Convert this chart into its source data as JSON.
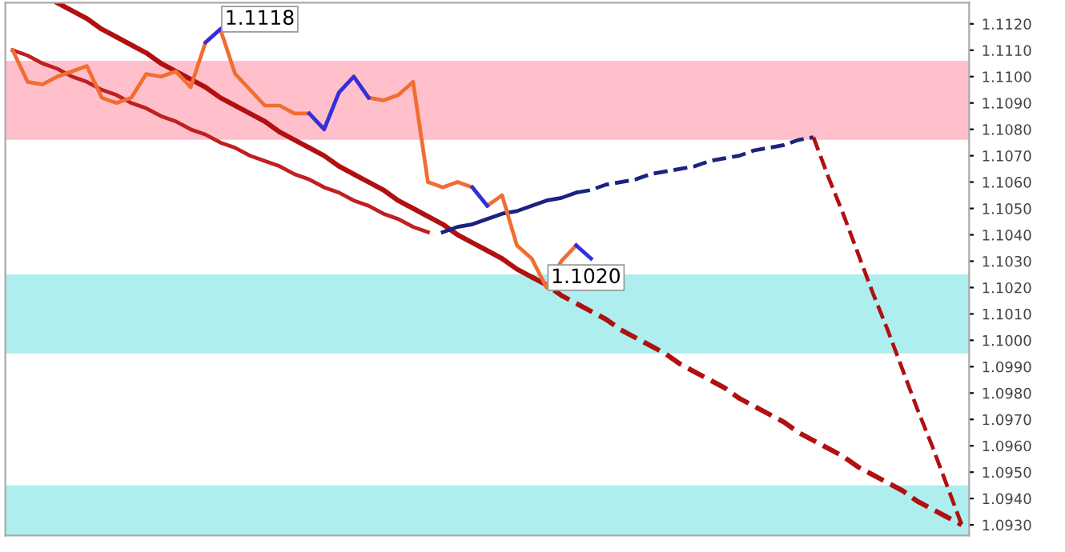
{
  "chart_data": {
    "type": "line",
    "ylim": [
      1.0926,
      1.1128
    ],
    "tick_labels": "y",
    "grid": false,
    "legend": false,
    "yticks": [
      {
        "value": 1.093,
        "label": "1.0930"
      },
      {
        "value": 1.094,
        "label": "1.0940"
      },
      {
        "value": 1.095,
        "label": "1.0950"
      },
      {
        "value": 1.096,
        "label": "1.0960"
      },
      {
        "value": 1.097,
        "label": "1.0970"
      },
      {
        "value": 1.098,
        "label": "1.0980"
      },
      {
        "value": 1.099,
        "label": "1.0990"
      },
      {
        "value": 1.1,
        "label": "1.1000"
      },
      {
        "value": 1.101,
        "label": "1.1010"
      },
      {
        "value": 1.102,
        "label": "1.1020"
      },
      {
        "value": 1.103,
        "label": "1.1030"
      },
      {
        "value": 1.104,
        "label": "1.1040"
      },
      {
        "value": 1.105,
        "label": "1.1050"
      },
      {
        "value": 1.106,
        "label": "1.1060"
      },
      {
        "value": 1.107,
        "label": "1.1070"
      },
      {
        "value": 1.108,
        "label": "1.1080"
      },
      {
        "value": 1.109,
        "label": "1.1090"
      },
      {
        "value": 1.11,
        "label": "1.1100"
      },
      {
        "value": 1.111,
        "label": "1.1110"
      },
      {
        "value": 1.112,
        "label": "1.1120"
      }
    ],
    "categories": [
      null,
      null,
      null,
      null,
      null,
      null,
      null,
      null,
      null,
      null,
      null,
      null,
      null,
      null,
      null,
      null,
      null,
      null,
      null,
      null,
      null,
      null,
      null,
      null,
      null,
      null,
      null,
      null,
      null,
      null,
      null,
      null,
      null,
      null,
      null,
      null,
      null,
      null,
      null,
      null,
      null,
      null,
      null,
      null,
      null,
      null,
      null,
      null,
      null,
      null,
      null,
      null,
      null,
      null,
      null,
      null,
      null,
      null,
      null,
      null,
      null,
      null,
      null,
      null,
      null
    ],
    "bands": [
      {
        "axis": "y",
        "from": 1.1076,
        "to": 1.1106,
        "color": "#ffc0cb"
      },
      {
        "axis": "y",
        "from": 1.0995,
        "to": 1.1025,
        "color": "#afeeee"
      },
      {
        "axis": "y",
        "from": 1.0926,
        "to": 1.0945,
        "color": "#afeeee"
      }
    ],
    "series": [
      {
        "color": "#b01010",
        "line_style": "solid",
        "values": [
          null,
          null,
          null,
          1.1128,
          1.1125,
          1.1122,
          1.1118,
          1.1115,
          1.1112,
          1.1109,
          1.1105,
          1.1102,
          1.1099,
          1.1096,
          1.1092,
          1.1089,
          1.1086,
          1.1083,
          1.1079,
          1.1076,
          1.1073,
          1.107,
          1.1066,
          1.1063,
          1.106,
          1.1057,
          1.1053,
          1.105,
          1.1047,
          1.1044,
          1.104,
          1.1037,
          1.1034,
          1.1031,
          1.1027,
          1.1024,
          null,
          null,
          null,
          null,
          null,
          null,
          null,
          null,
          null,
          null,
          null,
          null,
          null,
          null,
          null,
          null,
          null,
          null,
          null,
          null,
          null,
          null,
          null,
          null,
          null,
          null,
          null,
          null,
          null
        ]
      },
      {
        "color": "#b01010",
        "line_style": "dashed",
        "values": [
          null,
          null,
          null,
          null,
          null,
          null,
          null,
          null,
          null,
          null,
          null,
          null,
          null,
          null,
          null,
          null,
          null,
          null,
          null,
          null,
          null,
          null,
          null,
          null,
          null,
          null,
          null,
          null,
          null,
          null,
          null,
          null,
          null,
          null,
          null,
          1.1024,
          1.1021,
          1.1017,
          1.1014,
          1.1011,
          1.1008,
          1.1004,
          1.1001,
          1.0998,
          1.0995,
          1.0991,
          1.0988,
          1.0985,
          1.0982,
          1.0978,
          1.0975,
          1.0972,
          1.0969,
          1.0965,
          1.0962,
          1.0959,
          1.0956,
          1.0952,
          1.0949,
          1.0946,
          1.0943,
          1.0939,
          1.0936,
          1.0933,
          1.093
        ]
      },
      {
        "color": "#c02020",
        "line_style": "solid",
        "values": [
          1.111,
          1.1108,
          1.1105,
          1.1103,
          1.11,
          1.1098,
          1.1095,
          1.1093,
          1.109,
          1.1088,
          1.1085,
          1.1083,
          1.108,
          1.1078,
          1.1075,
          1.1073,
          1.107,
          1.1068,
          1.1066,
          1.1063,
          1.1061,
          1.1058,
          1.1056,
          1.1053,
          1.1051,
          1.1048,
          1.1046,
          1.1043,
          1.1041,
          null,
          null,
          null,
          null,
          null,
          null,
          null,
          null,
          null,
          null,
          null,
          null,
          null,
          null,
          null,
          null,
          null,
          null,
          null,
          null,
          null,
          null,
          null,
          null,
          null,
          null,
          null,
          null,
          null,
          null,
          null,
          null,
          null,
          null,
          null,
          null
        ]
      },
      {
        "color": "#1a237e",
        "line_style": "solid",
        "values": [
          null,
          null,
          null,
          null,
          null,
          null,
          null,
          null,
          null,
          null,
          null,
          null,
          null,
          null,
          null,
          null,
          null,
          null,
          null,
          null,
          null,
          null,
          null,
          null,
          null,
          null,
          null,
          null,
          null,
          1.1041,
          1.1043,
          1.1044,
          1.1046,
          1.1048,
          1.1049,
          1.1051,
          1.1053,
          1.1054,
          1.1056,
          null,
          null,
          null,
          null,
          null,
          null,
          null,
          null,
          null,
          null,
          null,
          null,
          null,
          null,
          null,
          null,
          null,
          null,
          null,
          null,
          null,
          null,
          null,
          null,
          null,
          null
        ]
      },
      {
        "color": "#1a237e",
        "line_style": "dashed",
        "values": [
          null,
          null,
          null,
          null,
          null,
          null,
          null,
          null,
          null,
          null,
          null,
          null,
          null,
          null,
          null,
          null,
          null,
          null,
          null,
          null,
          null,
          null,
          null,
          null,
          null,
          null,
          null,
          null,
          null,
          null,
          null,
          null,
          null,
          null,
          null,
          null,
          null,
          null,
          1.1056,
          1.1057,
          1.1059,
          1.106,
          1.1061,
          1.1063,
          1.1064,
          1.1065,
          1.1066,
          1.1068,
          1.1069,
          1.107,
          1.1072,
          1.1073,
          1.1074,
          1.1076,
          1.1077,
          null,
          null,
          null,
          null,
          null,
          null,
          null,
          null,
          null,
          null
        ]
      },
      {
        "color": "#b01010",
        "line_style": "dashed",
        "values": [
          null,
          null,
          null,
          null,
          null,
          null,
          null,
          null,
          null,
          null,
          null,
          null,
          null,
          null,
          null,
          null,
          null,
          null,
          null,
          null,
          null,
          null,
          null,
          null,
          null,
          null,
          null,
          null,
          null,
          null,
          null,
          null,
          null,
          null,
          null,
          null,
          null,
          null,
          null,
          null,
          null,
          null,
          null,
          null,
          null,
          null,
          null,
          null,
          null,
          null,
          null,
          null,
          null,
          null,
          1.1077,
          1.1062,
          1.1048,
          1.1033,
          1.1018,
          1.1004,
          1.0989,
          1.0974,
          1.096,
          1.0945,
          1.093
        ]
      },
      {
        "color": "#f26d30",
        "line_style": "solid",
        "values": [
          1.111,
          1.1098,
          1.1097,
          1.11,
          1.1102,
          1.1104,
          1.1092,
          1.109,
          1.1092,
          1.1101,
          1.11,
          1.1102,
          1.1096,
          1.1113,
          1.1118,
          1.1101,
          1.1095,
          1.1089,
          1.1089,
          1.1086,
          1.1086,
          1.108,
          1.1094,
          1.11,
          1.1092,
          1.1091,
          1.1093,
          1.1098,
          1.106,
          1.1058,
          1.106,
          1.1058,
          1.1051,
          1.1055,
          1.1036,
          1.1031,
          1.102,
          1.103,
          1.1036,
          null,
          null,
          null,
          null,
          null,
          null,
          null,
          null,
          null,
          null,
          null,
          null,
          null,
          null,
          null,
          null,
          null,
          null,
          null,
          null,
          null,
          null,
          null,
          null,
          null,
          null
        ],
        "value_labels": [
          null,
          null,
          null,
          null,
          null,
          null,
          null,
          null,
          null,
          null,
          null,
          null,
          null,
          null,
          "1.1118",
          null,
          null,
          null,
          null,
          null,
          null,
          null,
          null,
          null,
          null,
          null,
          null,
          null,
          null,
          null,
          null,
          null,
          null,
          null,
          null,
          null,
          "1.1020",
          null,
          null,
          null,
          null,
          null,
          null,
          null,
          null,
          null,
          null,
          null,
          null,
          null,
          null,
          null,
          null,
          null,
          null,
          null,
          null,
          null,
          null,
          null,
          null,
          null,
          null,
          null,
          null
        ]
      },
      {
        "color": "#3030e0",
        "line_style": "solid",
        "values": [
          null,
          null,
          null,
          null,
          null,
          null,
          null,
          null,
          null,
          null,
          null,
          null,
          null,
          1.1113,
          1.1118,
          null,
          null,
          null,
          null,
          null,
          1.1086,
          1.108,
          1.1094,
          1.11,
          1.1092,
          null,
          null,
          null,
          null,
          null,
          null,
          1.1058,
          1.1051,
          null,
          null,
          null,
          null,
          null,
          1.1036,
          1.1031,
          null,
          null,
          null,
          null,
          null,
          null,
          null,
          null,
          null,
          null,
          null,
          null,
          null,
          null,
          null,
          null,
          null,
          null,
          null,
          null,
          null,
          null,
          null,
          null,
          null
        ]
      }
    ]
  }
}
